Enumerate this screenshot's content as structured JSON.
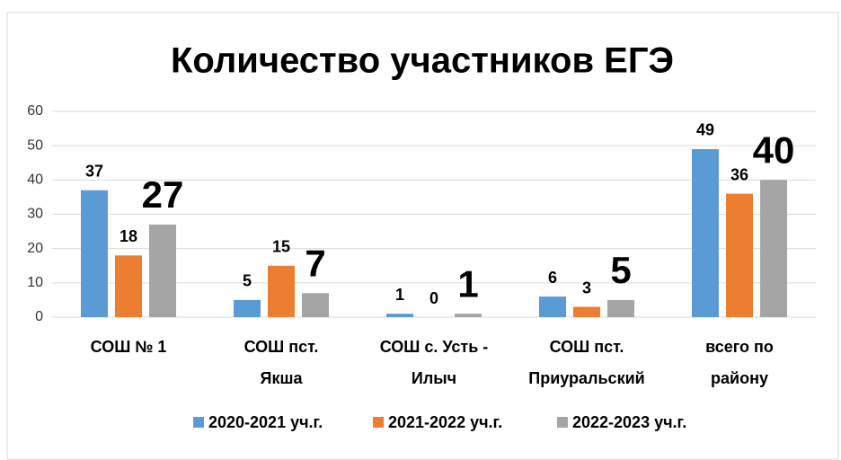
{
  "chart_data": {
    "type": "bar",
    "title": "Количество участников ЕГЭ",
    "categories": [
      [
        "СОШ № 1"
      ],
      [
        "СОШ пст.",
        "Якша"
      ],
      [
        "СОШ с. Усть -",
        "Илыч"
      ],
      [
        "СОШ пст.",
        "Приуральский"
      ],
      [
        "всего по",
        "району"
      ]
    ],
    "series": [
      {
        "name": "2020-2021 уч.г.",
        "color": "#5b9bd5",
        "values": [
          37,
          5,
          1,
          6,
          49
        ]
      },
      {
        "name": "2021-2022 уч.г.",
        "color": "#ed7d31",
        "values": [
          18,
          15,
          0,
          3,
          36
        ]
      },
      {
        "name": "2022-2023 уч.г.",
        "color": "#a5a5a5",
        "values": [
          27,
          7,
          1,
          5,
          40
        ]
      }
    ],
    "ylim": [
      0,
      60
    ],
    "yticks": [
      0,
      10,
      20,
      30,
      40,
      50,
      60
    ],
    "grid": true,
    "legend": "bottom"
  }
}
